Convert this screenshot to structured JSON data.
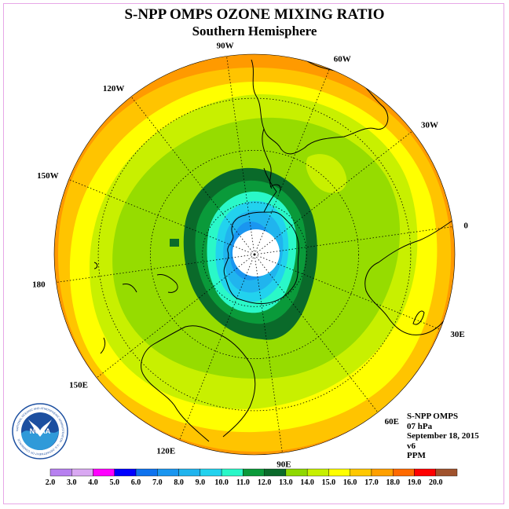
{
  "title": "S-NPP OMPS OZONE MIXING RATIO",
  "subtitle": "Southern Hemisphere",
  "meridian_labels": [
    {
      "text": "90W",
      "lon": -90
    },
    {
      "text": "60W",
      "lon": -60
    },
    {
      "text": "30W",
      "lon": -30
    },
    {
      "text": "0",
      "lon": 0
    },
    {
      "text": "30E",
      "lon": 30
    },
    {
      "text": "60E",
      "lon": 60
    },
    {
      "text": "90E",
      "lon": 90
    },
    {
      "text": "120E",
      "lon": 120
    },
    {
      "text": "150E",
      "lon": 150
    },
    {
      "text": "180",
      "lon": 180
    },
    {
      "text": "150W",
      "lon": -150
    },
    {
      "text": "120W",
      "lon": -120
    }
  ],
  "info": {
    "product": "S-NPP OMPS",
    "level": "07 hPa",
    "date": "September 18, 2015",
    "version": "v6",
    "units": "PPM"
  },
  "logo": {
    "text": "NOAA",
    "ring_text": "NATIONAL OCEANIC AND ATMOSPHERIC ADMINISTRATION · U.S. DEPARTMENT OF COMMERCE"
  },
  "legend": {
    "ticks": [
      "2.0",
      "3.0",
      "4.0",
      "5.0",
      "6.0",
      "7.0",
      "8.0",
      "9.0",
      "10.0",
      "11.0",
      "12.0",
      "13.0",
      "14.0",
      "15.0",
      "16.0",
      "17.0",
      "18.0",
      "19.0",
      "20.0"
    ],
    "colors": [
      "#b780f0",
      "#d9a8f2",
      "#ff00ff",
      "#0000ff",
      "#0e72ee",
      "#1a96f0",
      "#20b4ee",
      "#22d2ee",
      "#2af8c8",
      "#0a9a3a",
      "#0a6a2a",
      "#8ed800",
      "#c6f000",
      "#ffff00",
      "#ffc800",
      "#ffa000",
      "#ff6a00",
      "#ff0000",
      "#a0522d"
    ]
  },
  "field_colors": {
    "c20": "#7d5a3a",
    "c17": "#ff9a00",
    "c16": "#ffc400",
    "c15": "#ffff00",
    "c14": "#c8f000",
    "c13": "#96dc00",
    "c12": "#0a6a2a",
    "c11": "#0a9a3a",
    "c10": "#2af8c8",
    "c9": "#22d2ee",
    "c8": "#20b4ee",
    "c7": "#1a96f0",
    "missing": "#ffffff"
  }
}
